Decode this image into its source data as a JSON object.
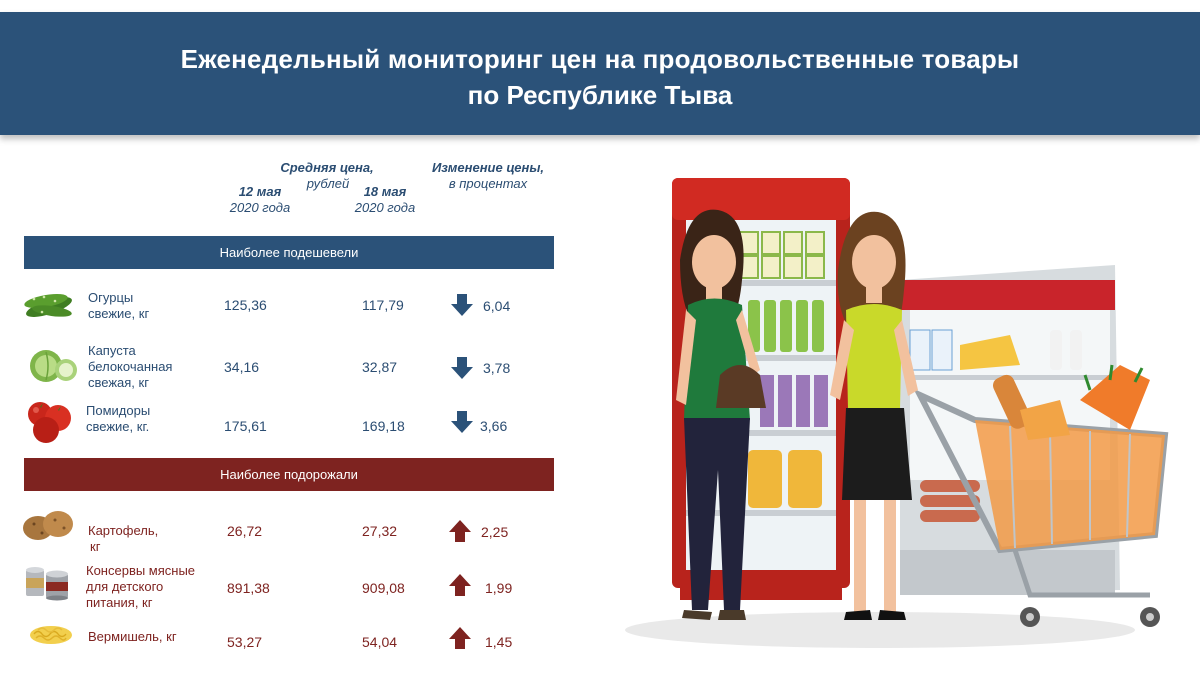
{
  "header": {
    "title_line1": "Еженедельный мониторинг цен на продовольственные товары",
    "title_line2": "по Республике Тыва"
  },
  "columns": {
    "avg_price_line1": "Средняя цена,",
    "avg_price_line2": "рублей",
    "date1_line1": "12 мая",
    "date1_line2": "2020 года",
    "date2_line1": "18 мая",
    "date2_line2": "2020 года",
    "change_line1": "Изменение цены,",
    "change_line2": "в процентах"
  },
  "sections": {
    "cheaper": "Наиболее подешевели",
    "pricier": "Наиболее подорожали"
  },
  "cheaper_items": [
    {
      "name_l1": "Огурцы",
      "name_l2": "свежие, кг",
      "name_l3": "",
      "p1": "125,36",
      "p2": "117,79",
      "change": "6,04",
      "icon": "cucumber-icon"
    },
    {
      "name_l1": "Капуста",
      "name_l2": "белокочанная",
      "name_l3": "свежая, кг",
      "p1": "34,16",
      "p2": "32,87",
      "change": "3,78",
      "icon": "cabbage-icon"
    },
    {
      "name_l1": "Помидоры",
      "name_l2": "свежие, кг.",
      "name_l3": "",
      "p1": "175,61",
      "p2": "169,18",
      "change": "3,66",
      "icon": "tomato-icon"
    }
  ],
  "pricier_items": [
    {
      "name_l1": "Картофель,",
      "name_l2": "кг",
      "name_l3": "",
      "p1": "26,72",
      "p2": "27,32",
      "change": "2,25",
      "icon": "potato-icon"
    },
    {
      "name_l1": "Консервы мясные",
      "name_l2": "для детского",
      "name_l3": "питания, кг",
      "p1": "891,38",
      "p2": "909,08",
      "change": "1,99",
      "icon": "canned-food-icon"
    },
    {
      "name_l1": "Вермишель, кг",
      "name_l2": "",
      "name_l3": "",
      "p1": "53,27",
      "p2": "54,04",
      "change": "1,45",
      "icon": "vermicelli-icon"
    }
  ],
  "colors": {
    "header_bg": "#2b5279",
    "cheaper_band": "#2b5279",
    "pricier_band": "#7e2320",
    "down_arrow": "#2b5279",
    "up_arrow": "#7e2320"
  }
}
